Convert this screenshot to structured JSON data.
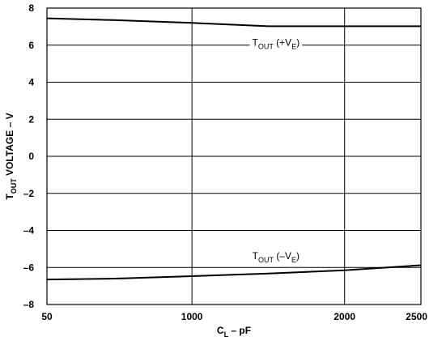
{
  "chart_data": {
    "type": "line",
    "title": "",
    "xlabel": {
      "main": "C",
      "sub": "L",
      "rest": " – pF"
    },
    "ylabel": {
      "main": "T",
      "sub": "OUT",
      "rest": " VOLTAGE – V"
    },
    "xlim": [
      50,
      2500
    ],
    "ylim": [
      -8,
      8
    ],
    "x_ticks": [
      50,
      1000,
      2000,
      2500
    ],
    "x_tick_labels": [
      "50",
      "1000",
      "2000",
      "2500"
    ],
    "y_ticks": [
      8,
      6,
      4,
      2,
      0,
      -2,
      -4,
      -6,
      -8
    ],
    "y_tick_labels": [
      "8",
      "6",
      "4",
      "2",
      "0",
      "–2",
      "–4",
      "–6",
      "–8"
    ],
    "grid": true,
    "series": [
      {
        "label": {
          "main": "T",
          "sub": "OUT",
          "mid": " (+V",
          "sub2": "E",
          "end": ")"
        },
        "points": [
          [
            50,
            7.45
          ],
          [
            500,
            7.35
          ],
          [
            1000,
            7.2
          ],
          [
            1500,
            7.02
          ],
          [
            2000,
            7.02
          ],
          [
            2500,
            7.02
          ]
        ]
      },
      {
        "label": {
          "main": "T",
          "sub": "OUT",
          "mid": " (–V",
          "sub2": "E",
          "end": ")"
        },
        "points": [
          [
            50,
            -6.65
          ],
          [
            500,
            -6.6
          ],
          [
            1000,
            -6.47
          ],
          [
            1500,
            -6.33
          ],
          [
            2000,
            -6.15
          ],
          [
            2500,
            -5.88
          ]
        ]
      }
    ]
  }
}
